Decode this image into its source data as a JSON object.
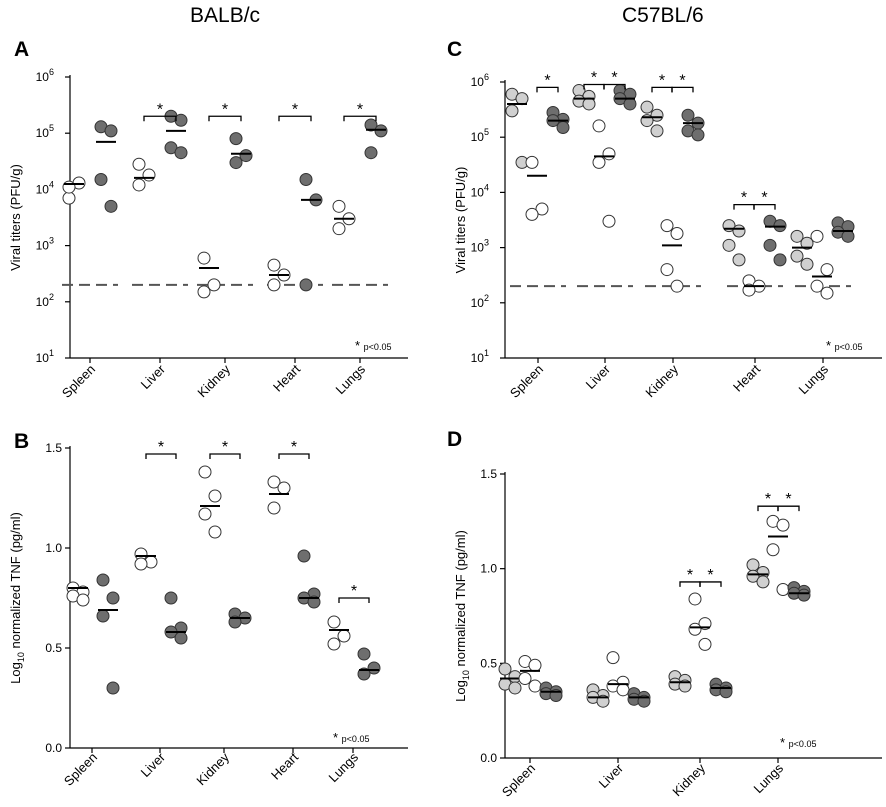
{
  "header": {
    "left_strain": "BALB/c",
    "right_strain": "C57BL/6"
  },
  "colors": {
    "open": "#ffffff",
    "light": "#d0d0d0",
    "dark": "#6e6e6e",
    "edge": "#333333"
  },
  "chart_data": [
    {
      "panel": "A",
      "type": "scatter",
      "ylabel": "Viral titers (PFU/g)",
      "yscale": "log",
      "ylim": [
        10,
        1000000
      ],
      "yticks": [
        10,
        100,
        1000,
        10000,
        100000,
        1000000
      ],
      "ytick_labels": [
        "10^1",
        "10^2",
        "10^3",
        "10^4",
        "10^5",
        "10^6"
      ],
      "categories": [
        "Spleen",
        "Liver",
        "Kidney",
        "Heart",
        "Lungs"
      ],
      "detection_limit": 200,
      "note": "p<0.05",
      "groups": [
        {
          "category": "Spleen",
          "fill": "open",
          "points": [
            7000,
            13000,
            11000
          ],
          "mean": 12500
        },
        {
          "category": "Spleen",
          "fill": "dark",
          "points": [
            130000,
            110000,
            15000,
            5000
          ],
          "mean": 70000
        },
        {
          "category": "Liver",
          "fill": "open",
          "points": [
            28000,
            18000,
            12000
          ],
          "mean": 16000
        },
        {
          "category": "Liver",
          "fill": "dark",
          "points": [
            200000,
            170000,
            55000,
            45000
          ],
          "mean": 110000
        },
        {
          "category": "Kidney",
          "fill": "open",
          "points": [
            600,
            200,
            150
          ],
          "mean": 400
        },
        {
          "category": "Kidney",
          "fill": "dark",
          "points": [
            80000,
            40000,
            30000
          ],
          "mean": 43000
        },
        {
          "category": "Heart",
          "fill": "open",
          "points": [
            450,
            300,
            200
          ],
          "mean": 300
        },
        {
          "category": "Heart",
          "fill": "dark",
          "points": [
            15000,
            6500,
            200
          ],
          "mean": 6500
        },
        {
          "category": "Lungs",
          "fill": "open",
          "points": [
            5000,
            3000,
            2000
          ],
          "mean": 3000
        },
        {
          "category": "Lungs",
          "fill": "dark",
          "points": [
            140000,
            110000,
            45000
          ],
          "mean": 115000
        }
      ],
      "significance": [
        {
          "category": "Liver",
          "from": 0,
          "to": 1,
          "level": 200000
        },
        {
          "category": "Kidney",
          "from": 0,
          "to": 1,
          "level": 200000
        },
        {
          "category": "Heart",
          "from": 0,
          "to": 1,
          "level": 200000
        },
        {
          "category": "Lungs",
          "from": 0,
          "to": 1,
          "level": 200000
        }
      ]
    },
    {
      "panel": "B",
      "type": "scatter",
      "ylabel": "Log10 normalized TNF (pg/ml)",
      "ylabel_main": "Log",
      "ylabel_sub": "10",
      "ylabel_rest": " normalized TNF (pg/ml)",
      "ylim": [
        0,
        1.5
      ],
      "yticks": [
        0,
        0.5,
        1.0,
        1.5
      ],
      "ytick_labels": [
        "0.0",
        "0.5",
        "1.0",
        "1.5"
      ],
      "categories": [
        "Spleen",
        "Liver",
        "Kidney",
        "Heart",
        "Lungs"
      ],
      "note": "p<0.05",
      "groups": [
        {
          "category": "Spleen",
          "fill": "open",
          "points": [
            0.8,
            0.78,
            0.76,
            0.74
          ],
          "mean": 0.8
        },
        {
          "category": "Spleen",
          "fill": "dark",
          "points": [
            0.84,
            0.75,
            0.66,
            0.3
          ],
          "mean": 0.69
        },
        {
          "category": "Liver",
          "fill": "open",
          "points": [
            0.97,
            0.93,
            0.92
          ],
          "mean": 0.96
        },
        {
          "category": "Liver",
          "fill": "dark",
          "points": [
            0.75,
            0.6,
            0.58,
            0.55
          ],
          "mean": 0.58
        },
        {
          "category": "Kidney",
          "fill": "open",
          "points": [
            1.38,
            1.26,
            1.17,
            1.08
          ],
          "mean": 1.21
        },
        {
          "category": "Kidney",
          "fill": "dark",
          "points": [
            0.67,
            0.65,
            0.63
          ],
          "mean": 0.65
        },
        {
          "category": "Heart",
          "fill": "open",
          "points": [
            1.33,
            1.3,
            1.2
          ],
          "mean": 1.27
        },
        {
          "category": "Heart",
          "fill": "dark",
          "points": [
            0.96,
            0.77,
            0.75,
            0.73
          ],
          "mean": 0.75
        },
        {
          "category": "Lungs",
          "fill": "open",
          "points": [
            0.63,
            0.56,
            0.52
          ],
          "mean": 0.59
        },
        {
          "category": "Lungs",
          "fill": "dark",
          "points": [
            0.47,
            0.4,
            0.37
          ],
          "mean": 0.39
        }
      ],
      "significance": [
        {
          "category": "Liver",
          "from": 0,
          "to": 1,
          "level": 1.47
        },
        {
          "category": "Kidney",
          "from": 0,
          "to": 1,
          "level": 1.47
        },
        {
          "category": "Heart",
          "from": 0,
          "to": 1,
          "level": 1.47
        },
        {
          "category": "Lungs",
          "from": 0,
          "to": 1,
          "level": 0.75
        }
      ]
    },
    {
      "panel": "C",
      "type": "scatter",
      "ylabel": "Viral titers (PFU/g)",
      "yscale": "log",
      "ylim": [
        10,
        1000000
      ],
      "yticks": [
        10,
        100,
        1000,
        10000,
        100000,
        1000000
      ],
      "ytick_labels": [
        "10^1",
        "10^2",
        "10^3",
        "10^4",
        "10^5",
        "10^6"
      ],
      "categories": [
        "Spleen",
        "Liver",
        "Kidney",
        "Heart",
        "Lungs"
      ],
      "detection_limit": 200,
      "note": "p<0.05",
      "groups": [
        {
          "category": "Spleen",
          "fill": "light",
          "points": [
            600000,
            500000,
            300000,
            35000
          ],
          "mean": 400000
        },
        {
          "category": "Spleen",
          "fill": "open",
          "points": [
            35000,
            5000,
            4000
          ],
          "mean": 20000
        },
        {
          "category": "Spleen",
          "fill": "dark",
          "points": [
            280000,
            210000,
            200000,
            150000
          ],
          "mean": 200000
        },
        {
          "category": "Liver",
          "fill": "light",
          "points": [
            700000,
            550000,
            450000,
            400000
          ],
          "mean": 500000
        },
        {
          "category": "Liver",
          "fill": "open",
          "points": [
            160000,
            50000,
            35000,
            3000
          ],
          "mean": 45000
        },
        {
          "category": "Liver",
          "fill": "dark",
          "points": [
            700000,
            600000,
            500000,
            400000
          ],
          "mean": 500000
        },
        {
          "category": "Kidney",
          "fill": "light",
          "points": [
            350000,
            250000,
            200000,
            130000
          ],
          "mean": 230000
        },
        {
          "category": "Kidney",
          "fill": "open",
          "points": [
            2500,
            1800,
            400,
            200
          ],
          "mean": 1100
        },
        {
          "category": "Kidney",
          "fill": "dark",
          "points": [
            250000,
            180000,
            130000,
            110000
          ],
          "mean": 180000
        },
        {
          "category": "Heart",
          "fill": "light",
          "points": [
            2500,
            2000,
            1100,
            600
          ],
          "mean": 2200
        },
        {
          "category": "Heart",
          "fill": "open",
          "points": [
            250,
            200,
            170
          ],
          "mean": 200
        },
        {
          "category": "Heart",
          "fill": "dark",
          "points": [
            3000,
            2500,
            1100,
            600
          ],
          "mean": 2400
        },
        {
          "category": "Lungs",
          "fill": "light",
          "points": [
            1600,
            1200,
            700,
            500
          ],
          "mean": 1000
        },
        {
          "category": "Lungs",
          "fill": "open",
          "points": [
            1600,
            400,
            200,
            150
          ],
          "mean": 300
        },
        {
          "category": "Lungs",
          "fill": "dark",
          "points": [
            2800,
            2400,
            1900,
            1600
          ],
          "mean": 2000
        }
      ],
      "significance": [
        {
          "category": "Spleen",
          "from": 1,
          "to": 2,
          "level": 800000
        },
        {
          "category": "Liver",
          "from": 0,
          "to": 1,
          "level": 900000
        },
        {
          "category": "Liver",
          "from": 1,
          "to": 2,
          "level": 900000
        },
        {
          "category": "Kidney",
          "from": 0,
          "to": 1,
          "level": 800000
        },
        {
          "category": "Kidney",
          "from": 1,
          "to": 2,
          "level": 800000
        },
        {
          "category": "Heart",
          "from": 0,
          "to": 1,
          "level": 6000
        },
        {
          "category": "Heart",
          "from": 1,
          "to": 2,
          "level": 6000
        }
      ]
    },
    {
      "panel": "D",
      "type": "scatter",
      "ylabel": "Log10 normalized TNF (pg/ml)",
      "ylabel_main": "Log",
      "ylabel_sub": "10",
      "ylabel_rest": " normalized TNF (pg/ml)",
      "ylim": [
        0,
        1.5
      ],
      "yticks": [
        0,
        0.5,
        1.0,
        1.5
      ],
      "ytick_labels": [
        "0.0",
        "0.5",
        "1.0",
        "1.5"
      ],
      "categories": [
        "Spleen",
        "Liver",
        "Kidney",
        "Lungs"
      ],
      "note": "p<0.05",
      "groups": [
        {
          "category": "Spleen",
          "fill": "light",
          "points": [
            0.47,
            0.43,
            0.39,
            0.37
          ],
          "mean": 0.42
        },
        {
          "category": "Spleen",
          "fill": "open",
          "points": [
            0.51,
            0.49,
            0.42,
            0.38
          ],
          "mean": 0.46
        },
        {
          "category": "Spleen",
          "fill": "dark",
          "points": [
            0.37,
            0.35,
            0.34,
            0.33
          ],
          "mean": 0.35
        },
        {
          "category": "Liver",
          "fill": "light",
          "points": [
            0.36,
            0.33,
            0.32,
            0.3
          ],
          "mean": 0.32
        },
        {
          "category": "Liver",
          "fill": "open",
          "points": [
            0.53,
            0.4,
            0.38,
            0.36
          ],
          "mean": 0.39
        },
        {
          "category": "Liver",
          "fill": "dark",
          "points": [
            0.34,
            0.32,
            0.31,
            0.3
          ],
          "mean": 0.32
        },
        {
          "category": "Kidney",
          "fill": "light",
          "points": [
            0.43,
            0.41,
            0.39,
            0.38
          ],
          "mean": 0.4
        },
        {
          "category": "Kidney",
          "fill": "open",
          "points": [
            0.84,
            0.71,
            0.68,
            0.6
          ],
          "mean": 0.69
        },
        {
          "category": "Kidney",
          "fill": "dark",
          "points": [
            0.39,
            0.37,
            0.36,
            0.35
          ],
          "mean": 0.37
        },
        {
          "category": "Lungs",
          "fill": "light",
          "points": [
            1.02,
            0.98,
            0.96,
            0.93
          ],
          "mean": 0.97
        },
        {
          "category": "Lungs",
          "fill": "open",
          "points": [
            1.25,
            1.23,
            1.1,
            0.89
          ],
          "mean": 1.17
        },
        {
          "category": "Lungs",
          "fill": "dark",
          "points": [
            0.9,
            0.88,
            0.87,
            0.86
          ],
          "mean": 0.87
        }
      ],
      "significance": [
        {
          "category": "Kidney",
          "from": 0,
          "to": 1,
          "level": 0.93
        },
        {
          "category": "Kidney",
          "from": 1,
          "to": 2,
          "level": 0.93
        },
        {
          "category": "Lungs",
          "from": 0,
          "to": 1,
          "level": 1.33
        },
        {
          "category": "Lungs",
          "from": 1,
          "to": 2,
          "level": 1.33
        }
      ]
    }
  ]
}
